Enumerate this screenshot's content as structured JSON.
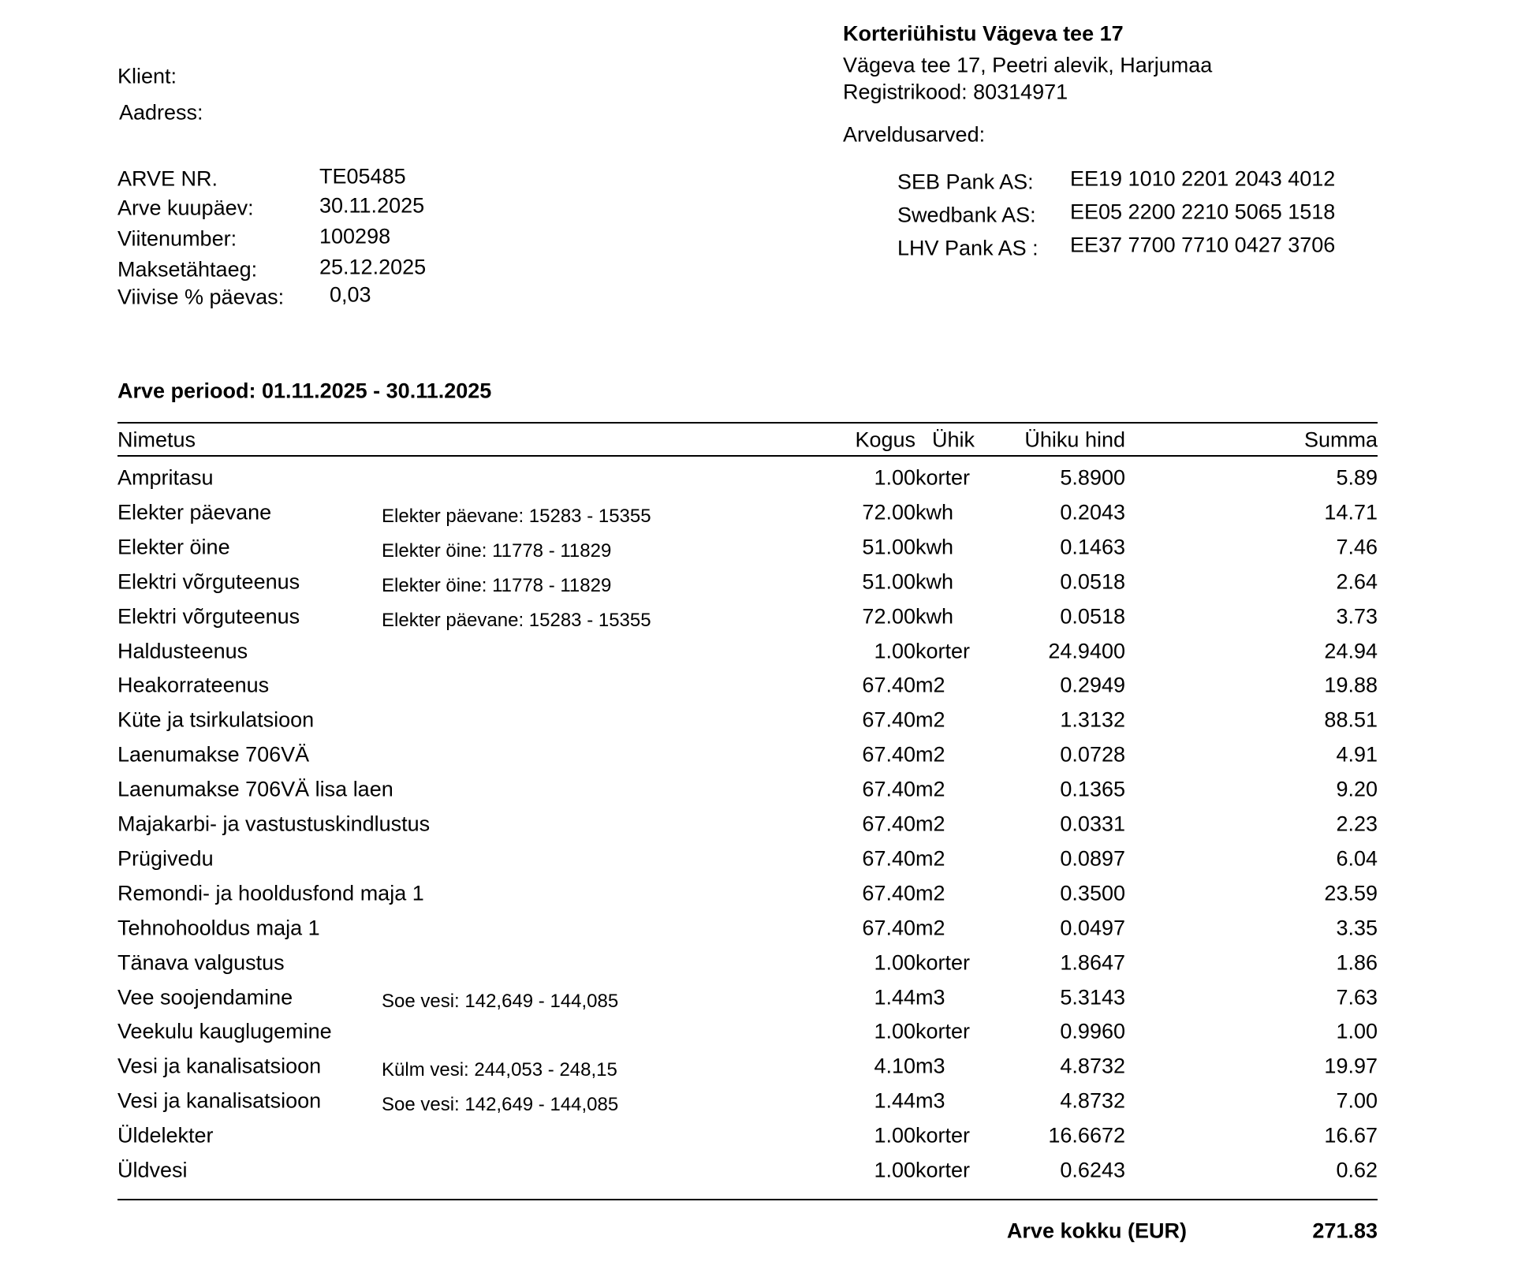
{
  "client": {
    "label": "Klient:",
    "address_label": "Aadress:"
  },
  "invoice_info": [
    [
      "ARVE NR.",
      "TE05485"
    ],
    [
      "Arve kuupäev:",
      "30.11.2025"
    ],
    [
      "Viitenumber:",
      "100298"
    ],
    [
      "Maksetähtaeg:",
      "25.12.2025"
    ],
    [
      "Viivise % päevas:",
      "0,03"
    ]
  ],
  "company": {
    "name": "Korteriühistu Vägeva tee 17",
    "address": "Vägeva tee 17, Peetri alevik, Harjumaa",
    "registry": "Registrikood: 80314971"
  },
  "accounts": {
    "title": "Arveldusarved:",
    "rows": [
      [
        "SEB Pank AS:",
        "EE19 1010 2201 2043 4012"
      ],
      [
        "Swedbank AS:",
        "EE05 2200 2210 5065 1518"
      ],
      [
        "LHV Pank AS :",
        "EE37 7700 7710 0427 3706"
      ]
    ]
  },
  "period": "Arve periood: 01.11.2025 - 30.11.2025",
  "table": {
    "header": [
      "Nimetus",
      "Kogus",
      "Ühik",
      "Ühiku hind",
      "Summa"
    ],
    "rows": [
      [
        "Ampritasu",
        null,
        "1.00",
        "korter",
        "5.8900",
        "5.89"
      ],
      [
        "Elekter päevane",
        "Elekter päevane: 15283 - 15355",
        "72.00",
        "kwh",
        "0.2043",
        "14.71"
      ],
      [
        "Elekter öine",
        "Elekter öine: 11778 - 11829",
        "51.00",
        "kwh",
        "0.1463",
        "7.46"
      ],
      [
        "Elektri võrguteenus",
        "Elekter öine: 11778 - 11829",
        "51.00",
        "kwh",
        "0.0518",
        "2.64"
      ],
      [
        "Elektri võrguteenus",
        "Elekter päevane: 15283 - 15355",
        "72.00",
        "kwh",
        "0.0518",
        "3.73"
      ],
      [
        "Haldusteenus",
        null,
        "1.00",
        "korter",
        "24.9400",
        "24.94"
      ],
      [
        "Heakorrateenus",
        null,
        "67.40",
        "m2",
        "0.2949",
        "19.88"
      ],
      [
        "Küte ja tsirkulatsioon",
        null,
        "67.40",
        "m2",
        "1.3132",
        "88.51"
      ],
      [
        "Laenumakse 706VÄ",
        null,
        "67.40",
        "m2",
        "0.0728",
        "4.91"
      ],
      [
        "Laenumakse 706VÄ lisa laen",
        null,
        "67.40",
        "m2",
        "0.1365",
        "9.20"
      ],
      [
        "Majakarbi- ja vastustuskindlustus",
        null,
        "67.40",
        "m2",
        "0.0331",
        "2.23"
      ],
      [
        "Prügivedu",
        null,
        "67.40",
        "m2",
        "0.0897",
        "6.04"
      ],
      [
        "Remondi- ja hooldusfond maja 1",
        null,
        "67.40",
        "m2",
        "0.3500",
        "23.59"
      ],
      [
        "Tehnohooldus maja 1",
        null,
        "67.40",
        "m2",
        "0.0497",
        "3.35"
      ],
      [
        "Tänava valgustus",
        null,
        "1.00",
        "korter",
        "1.8647",
        "1.86"
      ],
      [
        "Vee soojendamine",
        "Soe vesi: 142,649 - 144,085",
        "1.44",
        "m3",
        "5.3143",
        "7.63"
      ],
      [
        "Veekulu kauglugemine",
        null,
        "1.00",
        "korter",
        "0.9960",
        "1.00"
      ],
      [
        "Vesi ja kanalisatsioon",
        "Külm vesi: 244,053 - 248,15",
        "4.10",
        "m3",
        "4.8732",
        "19.97"
      ],
      [
        "Vesi ja kanalisatsioon",
        "Soe vesi: 142,649 - 144,085",
        "1.44",
        "m3",
        "4.8732",
        "7.00"
      ],
      [
        "Üldelekter",
        null,
        "1.00",
        "korter",
        "16.6672",
        "16.67"
      ],
      [
        "Üldvesi",
        null,
        "1.00",
        "korter",
        "0.6243",
        "0.62"
      ]
    ]
  },
  "total": {
    "label": "Arve kokku (EUR)",
    "value": "271.83"
  }
}
